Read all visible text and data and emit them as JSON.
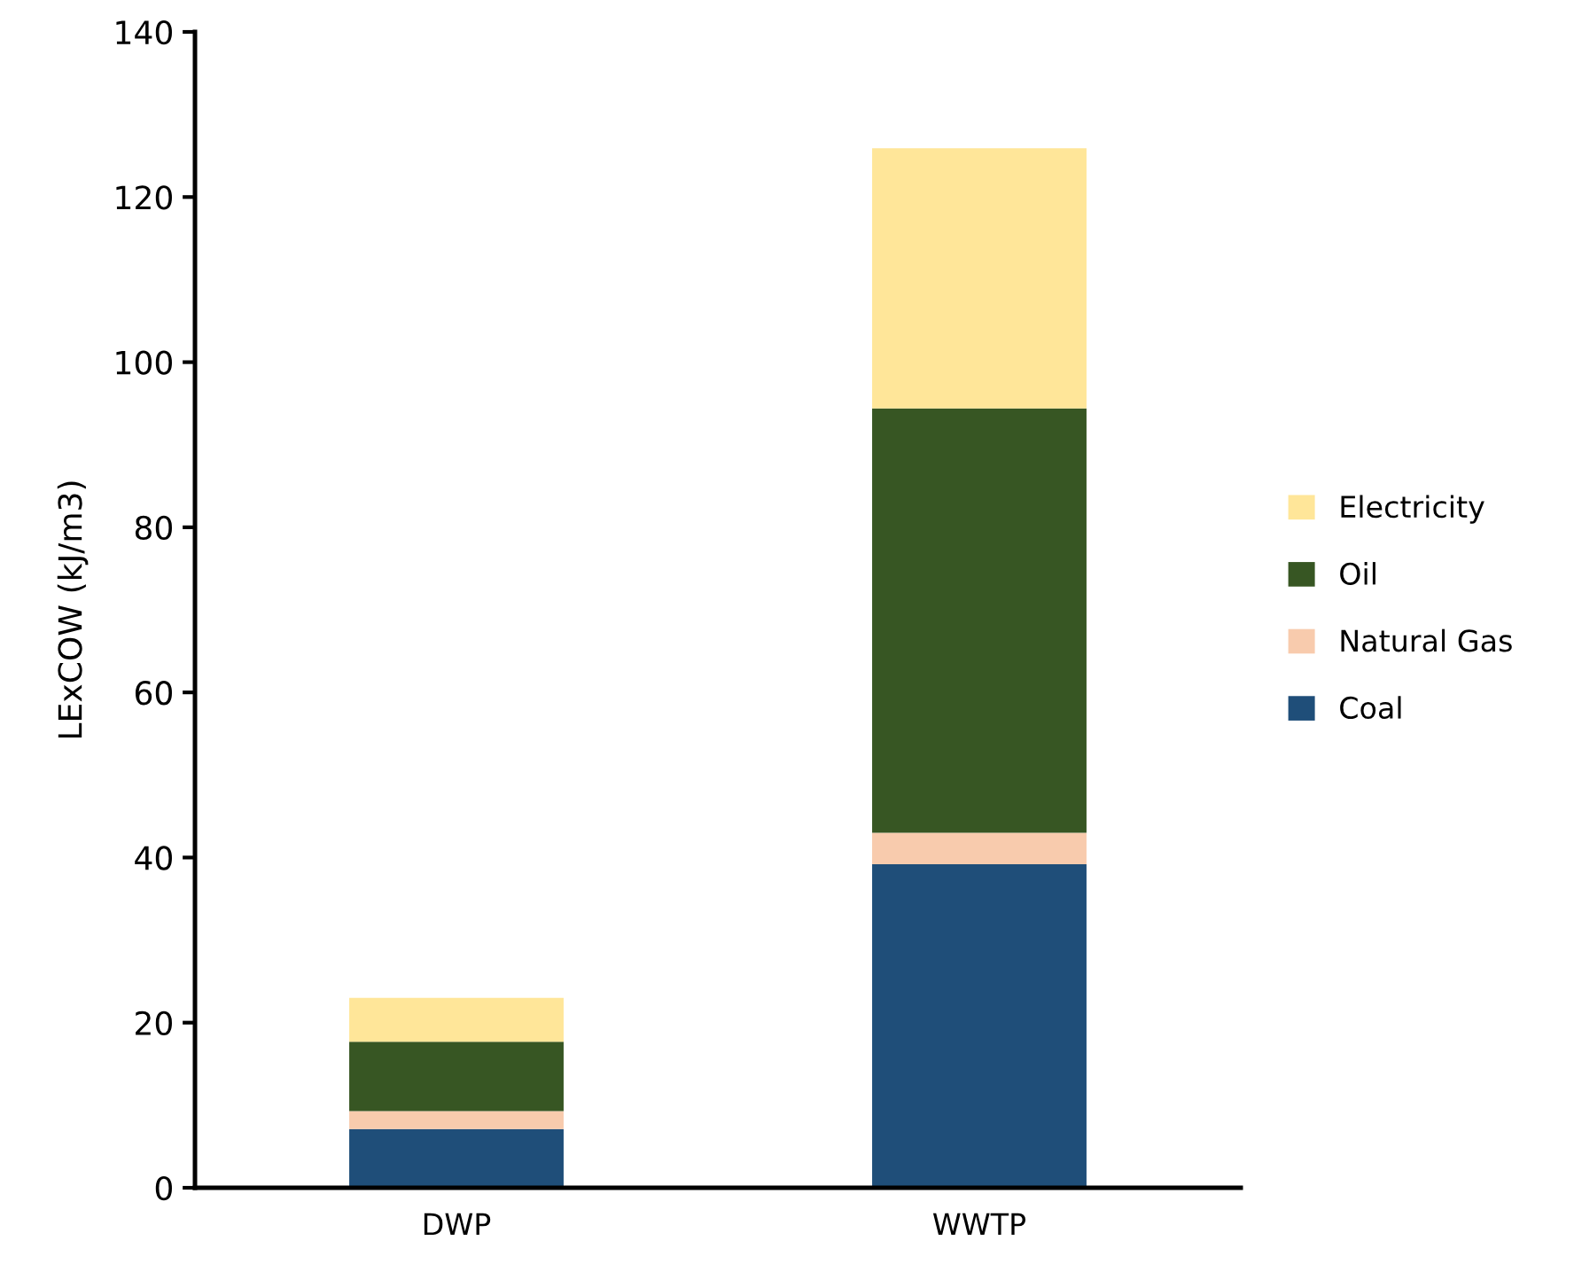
{
  "chart_data": {
    "type": "bar",
    "stacked": true,
    "ylabel": "LExCOW (kJ/m3)",
    "categories": [
      "DWP",
      "WWTP"
    ],
    "series": [
      {
        "name": "Coal",
        "color": "#1f4e79",
        "values": [
          7.1,
          39.2
        ]
      },
      {
        "name": "Natural Gas",
        "color": "#f8cbad",
        "values": [
          2.2,
          3.8
        ]
      },
      {
        "name": "Oil",
        "color": "#375623",
        "values": [
          8.4,
          51.4
        ]
      },
      {
        "name": "Electricity",
        "color": "#ffe699",
        "values": [
          5.3,
          31.5
        ]
      }
    ],
    "ylim": [
      0,
      140
    ],
    "yticks": [
      0,
      20,
      40,
      60,
      80,
      100,
      120,
      140
    ],
    "grid": false,
    "legend": "right"
  }
}
